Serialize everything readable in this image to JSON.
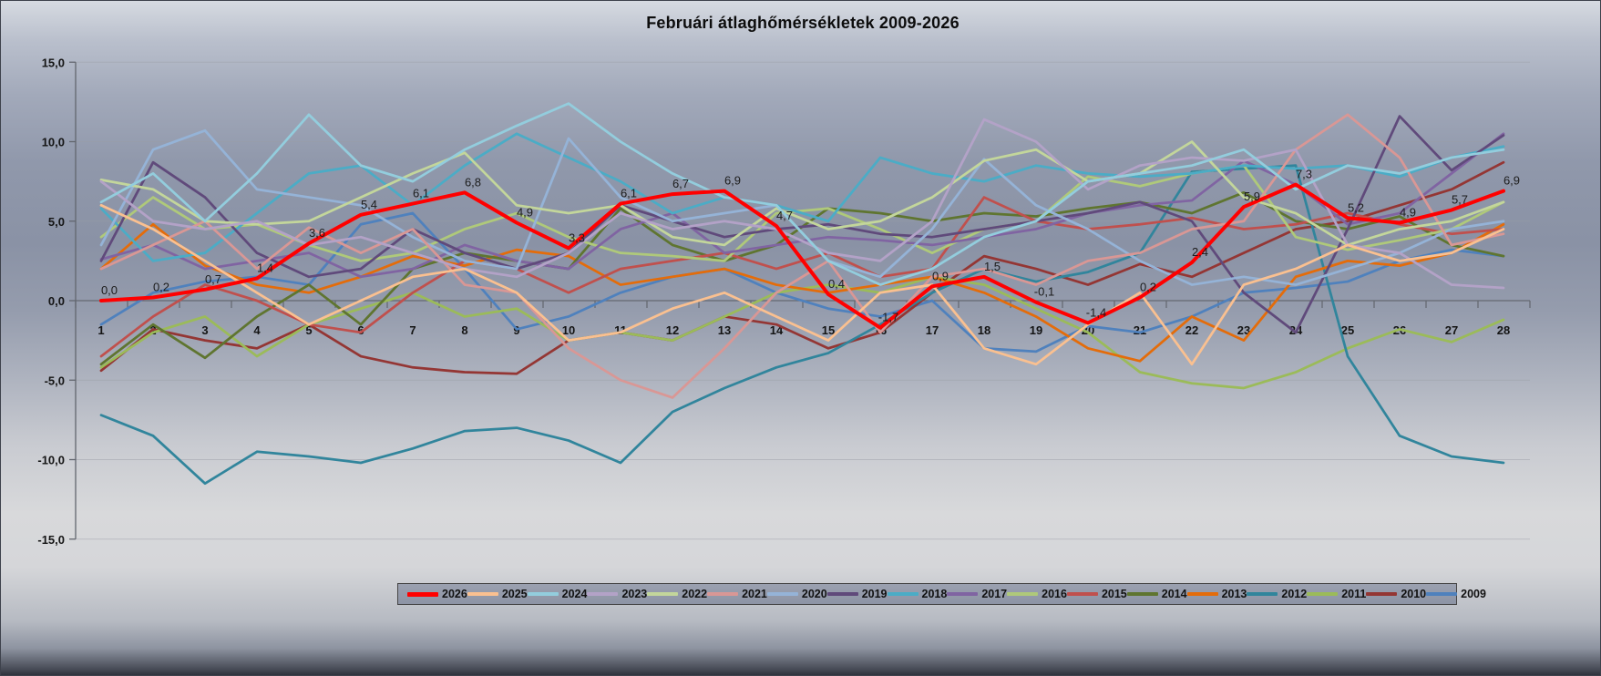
{
  "title": "Februári átlaghőmérsékletek 2009-2026",
  "chart_data": {
    "type": "line",
    "x": [
      1,
      2,
      3,
      4,
      5,
      6,
      7,
      8,
      9,
      10,
      11,
      12,
      13,
      14,
      15,
      16,
      17,
      18,
      19,
      20,
      21,
      22,
      23,
      24,
      25,
      26,
      27,
      28
    ],
    "xlabel": "",
    "ylabel": "",
    "ylim": [
      -15,
      15
    ],
    "ytick_step": 5,
    "ytick_labels": [
      "15,0",
      "10,0",
      "5,0",
      "0,0",
      "-5,0",
      "-10,0",
      "-15,0"
    ],
    "grid": true,
    "legend_position": "bottom",
    "decimal_separator": ",",
    "series": [
      {
        "name": "2026",
        "color": "#FF0000",
        "width": 4,
        "data_labels": true,
        "values": [
          0.0,
          0.2,
          0.7,
          1.4,
          3.6,
          5.4,
          6.1,
          6.8,
          4.9,
          3.3,
          6.1,
          6.7,
          6.9,
          4.7,
          0.4,
          -1.7,
          0.9,
          1.5,
          -0.1,
          -1.4,
          0.2,
          2.4,
          5.9,
          7.3,
          5.2,
          4.9,
          5.7,
          6.9
        ],
        "label_texts": [
          "0,0",
          "0,2",
          "0,7",
          "1,4",
          "3,6",
          "5,4",
          "6,1",
          "6,8",
          "4,9",
          "3,3",
          "6,1",
          "6,7",
          "6,9",
          "4,7",
          "0,4",
          "-1,7",
          "0,9",
          "1,5",
          "-0,1",
          "-1,4",
          "0,2",
          "2,4",
          "5,9",
          "7,3",
          "5,2",
          "4,9",
          "5,7",
          "6,9"
        ]
      },
      {
        "name": "2025",
        "color": "#FAC090",
        "width": 2.75,
        "data_labels": false,
        "values": [
          6.0,
          4.5,
          2.5,
          0.5,
          -1.5,
          0.0,
          1.5,
          2.0,
          0.5,
          -2.5,
          -2.0,
          -0.5,
          0.5,
          -1.0,
          -2.5,
          0.5,
          1.0,
          -3.0,
          -4.0,
          -1.5,
          0.5,
          -4.0,
          1.0,
          2.0,
          3.5,
          2.5,
          3.0,
          4.5
        ]
      },
      {
        "name": "2024",
        "color": "#93CDDD",
        "width": 2.75,
        "data_labels": false,
        "values": [
          6.2,
          8.0,
          5.0,
          8.0,
          11.7,
          8.5,
          7.5,
          9.5,
          11.0,
          12.4,
          10.0,
          8.0,
          6.5,
          6.0,
          2.5,
          1.0,
          2.0,
          4.0,
          5.0,
          7.5,
          8.0,
          8.5,
          9.5,
          7.0,
          8.5,
          8.0,
          9.0,
          9.5
        ]
      },
      {
        "name": "2023",
        "color": "#B3A2C7",
        "width": 2.75,
        "data_labels": false,
        "values": [
          7.5,
          5.0,
          4.5,
          5.0,
          3.5,
          4.0,
          3.0,
          2.0,
          1.5,
          3.0,
          5.5,
          4.5,
          5.0,
          4.5,
          3.0,
          2.5,
          5.0,
          11.4,
          10.0,
          7.0,
          8.5,
          9.0,
          8.8,
          9.5,
          3.5,
          3.0,
          1.0,
          0.8
        ]
      },
      {
        "name": "2022",
        "color": "#C3D69B",
        "width": 2.75,
        "data_labels": false,
        "values": [
          7.6,
          7.0,
          5.0,
          4.8,
          5.0,
          6.5,
          8.0,
          9.3,
          6.0,
          5.5,
          6.0,
          4.0,
          3.5,
          5.8,
          4.5,
          5.0,
          6.5,
          8.8,
          9.5,
          7.5,
          8.0,
          10.0,
          6.5,
          5.5,
          3.5,
          4.5,
          5.0,
          6.2
        ]
      },
      {
        "name": "2021",
        "color": "#D99795",
        "width": 2.75,
        "data_labels": false,
        "values": [
          2.0,
          3.5,
          5.0,
          2.0,
          4.6,
          3.0,
          4.5,
          1.0,
          0.5,
          -3.0,
          -5.0,
          -6.1,
          -3.0,
          0.5,
          2.5,
          -2.0,
          1.5,
          2.0,
          1.0,
          2.5,
          3.0,
          4.5,
          5.0,
          9.5,
          11.7,
          9.0,
          3.5,
          4.2
        ]
      },
      {
        "name": "2020",
        "color": "#95B3D7",
        "width": 2.75,
        "data_labels": false,
        "values": [
          3.5,
          9.5,
          10.7,
          7.0,
          6.5,
          6.0,
          4.0,
          2.5,
          2.0,
          10.2,
          6.5,
          5.0,
          5.5,
          6.0,
          2.5,
          1.5,
          4.5,
          8.9,
          6.0,
          4.5,
          2.5,
          1.0,
          1.5,
          1.0,
          2.0,
          3.0,
          4.5,
          5.0
        ]
      },
      {
        "name": "2019",
        "color": "#604A7B",
        "width": 2.75,
        "data_labels": false,
        "values": [
          2.5,
          8.7,
          6.5,
          3.0,
          1.5,
          2.0,
          4.5,
          3.0,
          2.0,
          3.0,
          6.0,
          5.0,
          4.0,
          4.5,
          4.8,
          4.2,
          4.0,
          4.5,
          5.0,
          5.5,
          6.2,
          5.0,
          0.5,
          -2.0,
          4.5,
          11.6,
          8.2,
          10.4
        ]
      },
      {
        "name": "2018",
        "color": "#4BACC6",
        "width": 2.75,
        "data_labels": false,
        "values": [
          5.8,
          2.5,
          3.0,
          5.5,
          8.0,
          8.5,
          6.0,
          8.5,
          10.5,
          9.0,
          7.5,
          5.5,
          6.5,
          6.0,
          5.0,
          9.0,
          8.0,
          7.5,
          8.5,
          8.0,
          7.8,
          8.0,
          8.5,
          8.3,
          8.5,
          7.8,
          9.0,
          9.7
        ]
      },
      {
        "name": "2017",
        "color": "#8064A2",
        "width": 2.75,
        "data_labels": false,
        "values": [
          2.6,
          3.5,
          2.0,
          2.5,
          3.0,
          1.5,
          2.0,
          3.5,
          2.5,
          2.0,
          4.5,
          5.5,
          3.0,
          3.5,
          4.0,
          3.8,
          3.5,
          4.0,
          4.5,
          5.5,
          6.0,
          6.3,
          8.8,
          7.3,
          4.8,
          5.5,
          8.0,
          10.5
        ]
      },
      {
        "name": "2016",
        "color": "#AFC97A",
        "width": 2.75,
        "data_labels": false,
        "values": [
          4.0,
          6.5,
          4.5,
          4.8,
          3.5,
          2.5,
          3.0,
          4.5,
          5.5,
          4.0,
          3.0,
          2.8,
          2.5,
          5.5,
          5.8,
          4.5,
          3.0,
          4.5,
          5.0,
          7.8,
          7.2,
          8.0,
          8.5,
          4.0,
          3.2,
          3.8,
          4.5,
          6.2
        ]
      },
      {
        "name": "2015",
        "color": "#C0504D",
        "width": 2.75,
        "data_labels": false,
        "values": [
          -3.5,
          -1.0,
          1.0,
          0.0,
          -1.5,
          -2.0,
          0.5,
          2.5,
          2.0,
          0.5,
          2.0,
          2.5,
          3.0,
          2.0,
          3.0,
          1.5,
          2.0,
          6.5,
          5.0,
          4.5,
          4.8,
          5.2,
          4.5,
          4.8,
          5.5,
          4.8,
          4.2,
          4.5
        ]
      },
      {
        "name": "2014",
        "color": "#5F7530",
        "width": 2.75,
        "data_labels": false,
        "values": [
          -4.0,
          -1.5,
          -3.6,
          -1.0,
          1.0,
          -1.5,
          2.0,
          3.0,
          2.5,
          2.0,
          5.8,
          3.5,
          2.5,
          3.5,
          5.8,
          5.5,
          5.0,
          5.5,
          5.3,
          5.8,
          6.2,
          5.5,
          6.8,
          5.0,
          4.5,
          5.3,
          3.5,
          2.8
        ]
      },
      {
        "name": "2013",
        "color": "#E46C0A",
        "width": 2.75,
        "data_labels": false,
        "values": [
          2.0,
          4.8,
          2.2,
          1.0,
          0.5,
          1.5,
          2.8,
          2.2,
          3.2,
          2.8,
          1.0,
          1.5,
          2.0,
          1.0,
          0.5,
          1.0,
          1.5,
          0.5,
          -1.0,
          -3.0,
          -3.8,
          -1.0,
          -2.5,
          1.5,
          2.5,
          2.2,
          3.0,
          4.8
        ]
      },
      {
        "name": "2012",
        "color": "#31859C",
        "width": 2.75,
        "data_labels": false,
        "values": [
          -7.2,
          -8.5,
          -11.5,
          -9.5,
          -9.8,
          -10.2,
          -9.3,
          -8.2,
          -8.0,
          -8.8,
          -10.2,
          -7.0,
          -5.5,
          -4.2,
          -3.3,
          -1.5,
          0.5,
          2.0,
          1.2,
          1.8,
          3.0,
          8.1,
          8.3,
          8.5,
          -3.5,
          -8.5,
          -9.8,
          -10.2
        ]
      },
      {
        "name": "2011",
        "color": "#9BBB59",
        "width": 2.75,
        "data_labels": false,
        "values": [
          -4.2,
          -2.0,
          -1.0,
          -3.5,
          -1.5,
          -0.5,
          0.5,
          -1.0,
          -0.5,
          -2.5,
          -2.0,
          -2.5,
          -1.0,
          0.5,
          1.0,
          0.5,
          1.5,
          1.0,
          -0.5,
          -2.0,
          -4.5,
          -5.2,
          -5.5,
          -4.5,
          -3.0,
          -1.8,
          -2.6,
          -1.2
        ]
      },
      {
        "name": "2010",
        "color": "#943634",
        "width": 2.75,
        "data_labels": false,
        "values": [
          -4.4,
          -1.8,
          -2.5,
          -3.0,
          -1.5,
          -3.5,
          -4.2,
          -4.5,
          -4.6,
          -2.5,
          -2.0,
          -2.5,
          -1.0,
          -1.5,
          -3.0,
          -2.0,
          0.5,
          2.8,
          2.0,
          1.0,
          2.3,
          1.5,
          3.0,
          4.5,
          5.0,
          6.0,
          7.0,
          8.7
        ]
      },
      {
        "name": "2009",
        "color": "#4F81BD",
        "width": 2.75,
        "data_labels": false,
        "values": [
          -1.5,
          0.5,
          1.2,
          1.5,
          1.0,
          4.8,
          5.5,
          2.0,
          -1.8,
          -1.0,
          0.5,
          1.5,
          2.0,
          0.5,
          -0.5,
          -1.0,
          0.0,
          -3.0,
          -3.2,
          -1.6,
          -2.0,
          -1.0,
          0.5,
          0.8,
          1.2,
          2.5,
          3.2,
          2.8
        ]
      }
    ]
  }
}
